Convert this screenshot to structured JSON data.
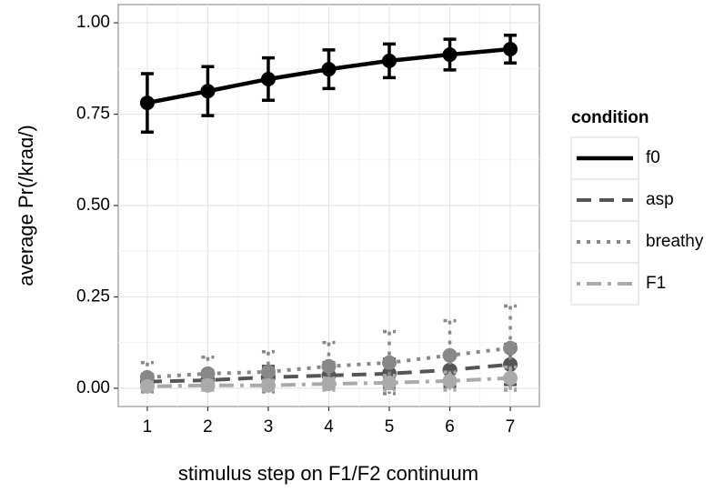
{
  "chart_data": {
    "type": "line",
    "x_label": "stimulus step on F1/F2 continuum",
    "y_label": "average Pr(/kraɑ/)",
    "legend_title": "condition",
    "x": [
      1,
      2,
      3,
      4,
      5,
      6,
      7
    ],
    "xlim": [
      0.52,
      7.48
    ],
    "xticks": [
      1,
      2,
      3,
      4,
      5,
      6,
      7
    ],
    "ylim": [
      -0.05,
      1.05
    ],
    "yticks": [
      {
        "value": 0,
        "label": "0.00"
      },
      {
        "value": 0.25,
        "label": "0.25"
      },
      {
        "value": 0.5,
        "label": "0.50"
      },
      {
        "value": 0.75,
        "label": "0.75"
      },
      {
        "value": 1,
        "label": "1.00"
      }
    ],
    "grid": true,
    "series": [
      {
        "name": "f0",
        "color": "#000000",
        "linetype": "solid",
        "values": [
          0.781,
          0.813,
          0.846,
          0.873,
          0.896,
          0.913,
          0.928
        ],
        "errors": [
          0.08,
          0.067,
          0.058,
          0.053,
          0.046,
          0.042,
          0.038
        ]
      },
      {
        "name": "asp",
        "color": "#555555",
        "linetype": "dashed",
        "values": [
          0.018,
          0.022,
          0.03,
          0.035,
          0.04,
          0.05,
          0.065
        ],
        "errors": [
          0.02,
          0.025,
          0.03,
          0.035,
          0.04,
          0.045,
          0.055
        ]
      },
      {
        "name": "breathy",
        "color": "#888888",
        "linetype": "dotted",
        "values": [
          0.03,
          0.04,
          0.045,
          0.06,
          0.07,
          0.09,
          0.11
        ],
        "errors": [
          0.04,
          0.045,
          0.055,
          0.065,
          0.085,
          0.095,
          0.115
        ]
      },
      {
        "name": "F1",
        "color": "#aaaaaa",
        "linetype": "dotdash",
        "values": [
          0.005,
          0.008,
          0.008,
          0.012,
          0.015,
          0.02,
          0.028
        ],
        "errors": [
          0.01,
          0.012,
          0.014,
          0.016,
          0.02,
          0.024,
          0.03
        ]
      }
    ]
  }
}
